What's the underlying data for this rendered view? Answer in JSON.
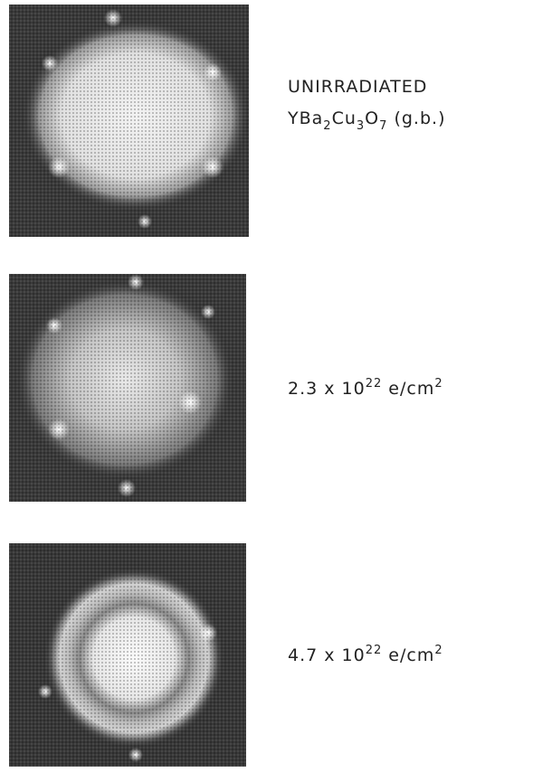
{
  "panels": [
    {
      "title": "UNIRRADIATED",
      "formula": [
        {
          "text": "YBa"
        },
        {
          "sub": "2"
        },
        {
          "text": "Cu"
        },
        {
          "sub": "3"
        },
        {
          "text": "O"
        },
        {
          "sub": "7"
        },
        {
          "text": " (g.b.)"
        }
      ]
    },
    {
      "dose": [
        {
          "text": "2.3 x 10"
        },
        {
          "sup": "22"
        },
        {
          "text": " e/cm"
        },
        {
          "sup": "2"
        }
      ]
    },
    {
      "dose": [
        {
          "text": "4.7 x 10"
        },
        {
          "sup": "22"
        },
        {
          "text": " e/cm"
        },
        {
          "sup": "2"
        }
      ]
    }
  ]
}
